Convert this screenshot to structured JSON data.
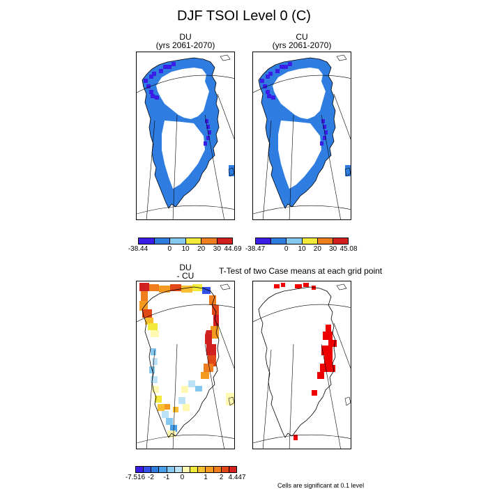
{
  "title": "DJF TSOI Level 0 (C)",
  "panels": {
    "du": {
      "title1": "DU",
      "title2": "(yrs 2061-2070)"
    },
    "cu": {
      "title1": "CU",
      "title2": "(yrs 2061-2070)"
    },
    "diff": {
      "title1": "DU",
      "title2": "- CU"
    },
    "ttest": {
      "title": "T-Test of two Case means at each grid point"
    }
  },
  "colorbars": {
    "du": {
      "labels": [
        "-38.44",
        "0",
        "10",
        "20",
        "30",
        "44.69"
      ],
      "colors": [
        "#3a1ee8",
        "#2f7de0",
        "#84c8ef",
        "#f2ea3a",
        "#f07d1e",
        "#d22020"
      ]
    },
    "cu": {
      "labels": [
        "-38.47",
        "0",
        "10",
        "20",
        "30",
        "45.08"
      ],
      "colors": [
        "#3a1ee8",
        "#2f7de0",
        "#84c8ef",
        "#f2ea3a",
        "#f07d1e",
        "#d22020"
      ]
    },
    "diff": {
      "labels": [
        "-7.516",
        "-2",
        "-1",
        "0",
        "1",
        "2",
        "4.447"
      ],
      "colors": [
        "#3a1ee8",
        "#3050e8",
        "#2f7de0",
        "#4aa0e8",
        "#84c8ef",
        "#bde2f5",
        "#fff8b0",
        "#f2ea3a",
        "#f8c030",
        "#f59a20",
        "#f07d1e",
        "#e04818",
        "#d22020"
      ]
    }
  },
  "footnote": "Cells are significant at 0.1 level"
}
